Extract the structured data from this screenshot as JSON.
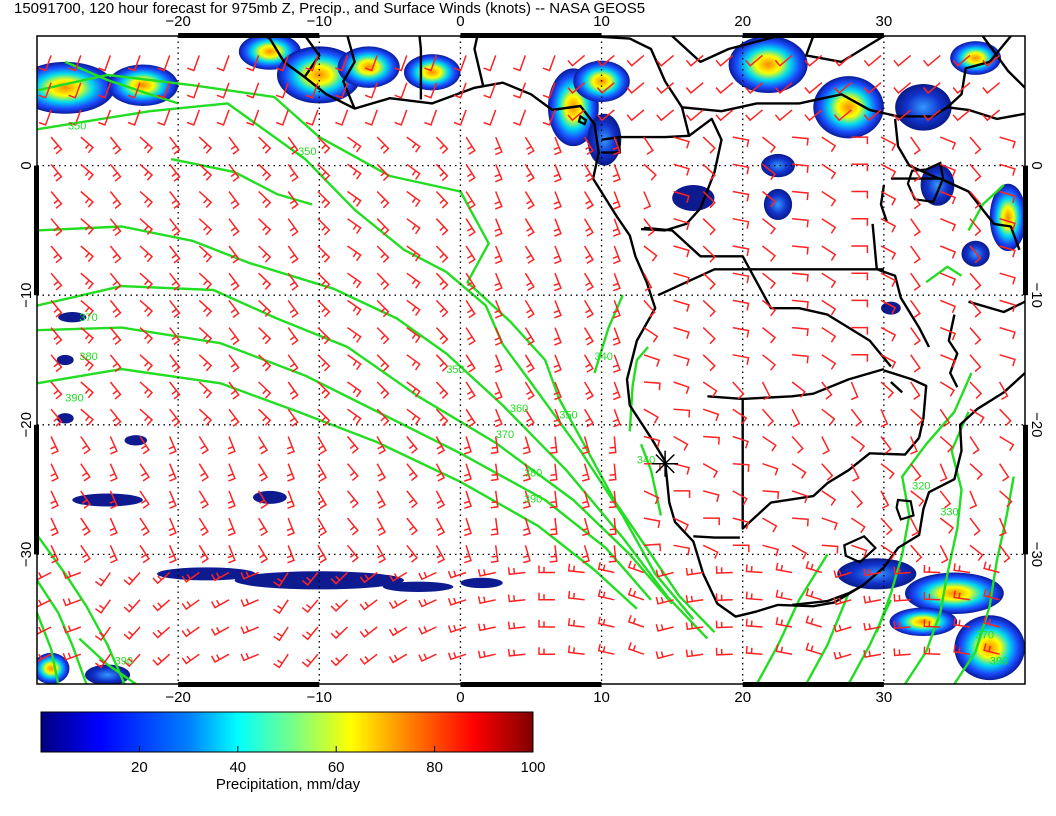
{
  "title": "15091700, 120 hour forecast for 975mb Z, Precip., and Surface Winds (knots) -- NASA GEOS5",
  "map": {
    "lon_range": [
      -30,
      40
    ],
    "lat_range": [
      -40,
      10
    ],
    "lon_ticks": [
      -20,
      -10,
      0,
      10,
      20,
      30
    ],
    "lon_tick_labels": [
      "−20",
      "−10",
      "0",
      "10",
      "20",
      "30"
    ],
    "lat_ticks": [
      0,
      -10,
      -20,
      -30
    ],
    "lat_tick_labels": [
      "0",
      "−10",
      "−20",
      "−30"
    ],
    "grid": "dotted",
    "marker": {
      "lon": 14.5,
      "lat": -23.0,
      "name": "asterisk"
    }
  },
  "contours": {
    "color": "#22dd22",
    "labels": [
      {
        "text": "350",
        "lon": -27.8,
        "lat": 2.8
      },
      {
        "text": "350",
        "lon": -11.5,
        "lat": 0.8
      },
      {
        "text": "370",
        "lon": -27.0,
        "lat": -12.0
      },
      {
        "text": "380",
        "lon": -27.0,
        "lat": -15.0
      },
      {
        "text": "390",
        "lon": -28.0,
        "lat": -18.2
      },
      {
        "text": "350",
        "lon": -1.0,
        "lat": -16.0
      },
      {
        "text": "360",
        "lon": 3.5,
        "lat": -19.0
      },
      {
        "text": "370",
        "lon": 2.5,
        "lat": -21.0
      },
      {
        "text": "380",
        "lon": 4.5,
        "lat": -24.0
      },
      {
        "text": "390",
        "lon": 4.5,
        "lat": -26.0
      },
      {
        "text": "340",
        "lon": 9.5,
        "lat": -15.0
      },
      {
        "text": "350",
        "lon": 7.0,
        "lat": -19.5
      },
      {
        "text": "340",
        "lon": 12.5,
        "lat": -23.0
      },
      {
        "text": "320",
        "lon": 32.0,
        "lat": -25.0
      },
      {
        "text": "330",
        "lon": 34.0,
        "lat": -27.0
      },
      {
        "text": "390",
        "lon": -24.5,
        "lat": -38.5
      },
      {
        "text": "370",
        "lon": 36.5,
        "lat": -36.5
      },
      {
        "text": "390",
        "lon": 37.5,
        "lat": -38.5
      }
    ]
  },
  "colorbar": {
    "ticks": [
      "20",
      "40",
      "60",
      "80",
      "100"
    ],
    "range": [
      0,
      100
    ],
    "label": "Precipitation, mm/day",
    "colors": [
      "#00007f",
      "#0000ff",
      "#007fff",
      "#00ffff",
      "#7fff7f",
      "#ffff00",
      "#ff7f00",
      "#ff0000",
      "#7f0000"
    ]
  },
  "wind": {
    "barb_color": "#ff2222"
  }
}
